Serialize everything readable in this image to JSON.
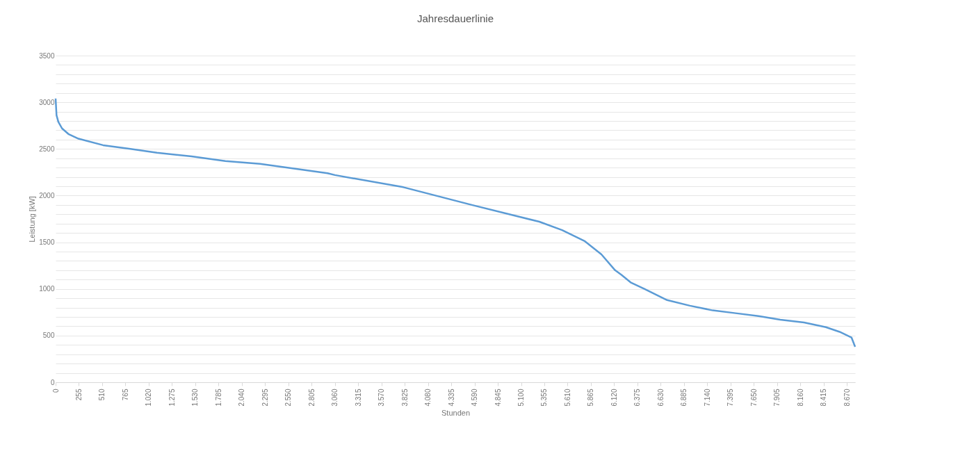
{
  "chart_data": {
    "type": "line",
    "title": "Jahresdauerlinie",
    "xlabel": "Stunden",
    "ylabel": "Leistung [kW]",
    "x": [
      0,
      10,
      30,
      70,
      140,
      250,
      520,
      820,
      1110,
      1490,
      1860,
      2240,
      2610,
      2980,
      3060,
      3810,
      4560,
      5300,
      5550,
      5800,
      5980,
      6130,
      6200,
      6300,
      6450,
      6700,
      6950,
      7200,
      7450,
      7700,
      7940,
      8200,
      8440,
      8590,
      8720,
      8760
    ],
    "series": [
      {
        "color": "#5b9bd5",
        "values": [
          3040,
          2860,
          2790,
          2720,
          2660,
          2610,
          2540,
          2500,
          2460,
          2420,
          2370,
          2340,
          2290,
          2240,
          2220,
          2090,
          1900,
          1720,
          1630,
          1510,
          1370,
          1200,
          1150,
          1070,
          1000,
          880,
          820,
          770,
          740,
          710,
          670,
          640,
          590,
          540,
          480,
          380
        ]
      }
    ],
    "xlim": [
      0,
      8760
    ],
    "xticks": [
      0,
      255,
      510,
      765,
      {
        "value": 1020,
        "label": "1.020"
      },
      {
        "value": 1275,
        "label": "1.275"
      },
      {
        "value": 1530,
        "label": "1.530"
      },
      {
        "value": 1785,
        "label": "1.785"
      },
      {
        "value": 2040,
        "label": "2.040"
      },
      {
        "value": 2295,
        "label": "2.295"
      },
      {
        "value": 2550,
        "label": "2.550"
      },
      {
        "value": 2805,
        "label": "2.805"
      },
      {
        "value": 3060,
        "label": "3.060"
      },
      {
        "value": 3315,
        "label": "3.315"
      },
      {
        "value": 3570,
        "label": "3.570"
      },
      {
        "value": 3825,
        "label": "3.825"
      },
      {
        "value": 4080,
        "label": "4.080"
      },
      {
        "value": 4335,
        "label": "4.335"
      },
      {
        "value": 4590,
        "label": "4.590"
      },
      {
        "value": 4845,
        "label": "4.845"
      },
      {
        "value": 5100,
        "label": "5.100"
      },
      {
        "value": 5355,
        "label": "5.355"
      },
      {
        "value": 5610,
        "label": "5.610"
      },
      {
        "value": 5865,
        "label": "5.865"
      },
      {
        "value": 6120,
        "label": "6.120"
      },
      {
        "value": 6375,
        "label": "6.375"
      },
      {
        "value": 6630,
        "label": "6.630"
      },
      {
        "value": 6885,
        "label": "6.885"
      },
      {
        "value": 7140,
        "label": "7.140"
      },
      {
        "value": 7395,
        "label": "7.395"
      },
      {
        "value": 7650,
        "label": "7.650"
      },
      {
        "value": 7905,
        "label": "7.905"
      },
      {
        "value": 8160,
        "label": "8.160"
      },
      {
        "value": 8415,
        "label": "8.415"
      },
      {
        "value": 8670,
        "label": "8.670"
      }
    ],
    "ylim": [
      0,
      3500
    ],
    "yticks": [
      0,
      {
        "value": 100,
        "label": null
      },
      {
        "value": 200,
        "label": null
      },
      {
        "value": 300,
        "label": null
      },
      {
        "value": 400,
        "label": null
      },
      500,
      {
        "value": 600,
        "label": null
      },
      {
        "value": 700,
        "label": null
      },
      {
        "value": 800,
        "label": null
      },
      {
        "value": 900,
        "label": null
      },
      1000,
      {
        "value": 1100,
        "label": null
      },
      {
        "value": 1200,
        "label": null
      },
      {
        "value": 1300,
        "label": null
      },
      {
        "value": 1400,
        "label": null
      },
      1500,
      {
        "value": 1600,
        "label": null
      },
      {
        "value": 1700,
        "label": null
      },
      {
        "value": 1800,
        "label": null
      },
      {
        "value": 1900,
        "label": null
      },
      2000,
      {
        "value": 2100,
        "label": null
      },
      {
        "value": 2200,
        "label": null
      },
      {
        "value": 2300,
        "label": null
      },
      {
        "value": 2400,
        "label": null
      },
      2500,
      {
        "value": 2600,
        "label": null
      },
      {
        "value": 2700,
        "label": null
      },
      {
        "value": 2800,
        "label": null
      },
      {
        "value": 2900,
        "label": null
      },
      3000,
      {
        "value": 3100,
        "label": null
      },
      {
        "value": 3200,
        "label": null
      },
      {
        "value": 3300,
        "label": null
      },
      {
        "value": 3400,
        "label": null
      },
      3500
    ],
    "grid": "y",
    "legend": false,
    "marker": "none",
    "line_style": "solid"
  }
}
